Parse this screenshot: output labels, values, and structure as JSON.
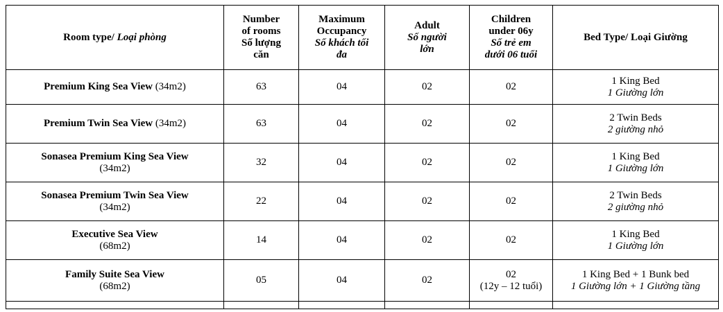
{
  "headers": {
    "room_type": {
      "en": "Room type/ ",
      "vi": "Loại phòng"
    },
    "rooms": {
      "l1": "Number",
      "l2": "of rooms",
      "l3": "Số lượng",
      "l4": "căn"
    },
    "max_occ": {
      "l1": "Maximum",
      "l2": "Occupancy",
      "l3": "Số khách tối",
      "l4": "đa"
    },
    "adult": {
      "l1": "Adult",
      "l2": "Số người",
      "l3": "lớn"
    },
    "children": {
      "l1": "Children",
      "l2": "under 06y",
      "l3": "Số trẻ em",
      "l4": "dưới 06 tuổi"
    },
    "bed_type": {
      "en": "Bed Type/ ",
      "vi": "Loại Giường"
    }
  },
  "rows": [
    {
      "name": "Premium King Sea View",
      "size": " (34m2)",
      "size_newline": false,
      "rooms": "63",
      "max": "04",
      "adult": "02",
      "children": "02",
      "children_note": "",
      "bed_en": "1 King Bed",
      "bed_vi": "1 Giường lớn"
    },
    {
      "name": "Premium Twin Sea View",
      "size": " (34m2)",
      "size_newline": false,
      "rooms": "63",
      "max": "04",
      "adult": "02",
      "children": "02",
      "children_note": "",
      "bed_en": "2 Twin Beds",
      "bed_vi": "2 giường nhỏ"
    },
    {
      "name": "Sonasea Premium King Sea View",
      "size": "(34m2)",
      "size_newline": true,
      "rooms": "32",
      "max": "04",
      "adult": "02",
      "children": "02",
      "children_note": "",
      "bed_en": "1 King Bed",
      "bed_vi": "1 Giường lớn"
    },
    {
      "name": "Sonasea Premium Twin Sea View",
      "size": "(34m2)",
      "size_newline": true,
      "rooms": "22",
      "max": "04",
      "adult": "02",
      "children": "02",
      "children_note": "",
      "bed_en": "2 Twin Beds",
      "bed_vi": "2 giường nhỏ"
    },
    {
      "name": "Executive Sea View",
      "size": "(68m2)",
      "size_newline": true,
      "rooms": "14",
      "max": "04",
      "adult": "02",
      "children": "02",
      "children_note": "",
      "bed_en": "1 King Bed",
      "bed_vi": "1 Giường lớn"
    },
    {
      "name": "Family Suite Sea View",
      "size": "(68m2)",
      "size_newline": true,
      "rooms": "05",
      "max": "04",
      "adult": "02",
      "children": "02",
      "children_note": "(12y – 12 tuổi)",
      "bed_en": "1 King Bed + 1 Bunk bed",
      "bed_vi": "1 Giường lớn + 1 Giường tầng"
    }
  ]
}
